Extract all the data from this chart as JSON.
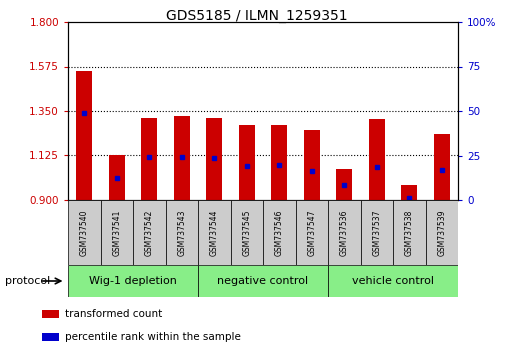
{
  "title": "GDS5185 / ILMN_1259351",
  "samples": [
    "GSM737540",
    "GSM737541",
    "GSM737542",
    "GSM737543",
    "GSM737544",
    "GSM737545",
    "GSM737546",
    "GSM737547",
    "GSM737536",
    "GSM737537",
    "GSM737538",
    "GSM737539"
  ],
  "bar_bottom": 0.9,
  "bar_tops": [
    1.55,
    1.125,
    1.315,
    1.325,
    1.315,
    1.28,
    1.28,
    1.255,
    1.055,
    1.31,
    0.975,
    1.235
  ],
  "blue_values": [
    1.34,
    1.01,
    1.115,
    1.118,
    1.112,
    1.07,
    1.075,
    1.045,
    0.975,
    1.065,
    0.91,
    1.05
  ],
  "ylim_left": [
    0.9,
    1.8
  ],
  "yticks_left": [
    0.9,
    1.125,
    1.35,
    1.575,
    1.8
  ],
  "ylim_right": [
    0,
    100
  ],
  "yticks_right": [
    0,
    25,
    50,
    75,
    100
  ],
  "bar_color": "#cc0000",
  "blue_color": "#0000cc",
  "groups": [
    {
      "label": "Wig-1 depletion",
      "indices": [
        0,
        1,
        2,
        3
      ]
    },
    {
      "label": "negative control",
      "indices": [
        4,
        5,
        6,
        7
      ]
    },
    {
      "label": "vehicle control",
      "indices": [
        8,
        9,
        10,
        11
      ]
    }
  ],
  "group_bg_color": "#88ee88",
  "sample_bg_color": "#cccccc",
  "protocol_label": "protocol",
  "bar_width": 0.5,
  "legend_items": [
    {
      "color": "#cc0000",
      "label": "transformed count"
    },
    {
      "color": "#0000cc",
      "label": "percentile rank within the sample"
    }
  ],
  "fig_width": 5.13,
  "fig_height": 3.54,
  "dpi": 100
}
